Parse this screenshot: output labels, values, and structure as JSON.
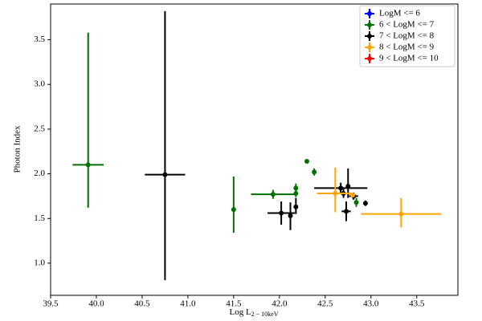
{
  "chart_data": {
    "type": "errorbar_scatter",
    "xlabel": "Log L",
    "xlabel_sub": "2 − 10keV",
    "ylabel": "Photon Index",
    "xlim": [
      39.5,
      43.95
    ],
    "ylim": [
      0.64,
      3.9
    ],
    "xticks": [
      39.5,
      {
        "value": 40.0,
        "label": "40.0"
      },
      40.5,
      {
        "value": 41.0,
        "label": "41.0"
      },
      41.5,
      {
        "value": 42.0,
        "label": "42.0"
      },
      42.5,
      {
        "value": 43.0,
        "label": "43.0"
      },
      43.5
    ],
    "yticks": [
      {
        "value": 1.0,
        "label": "1.0"
      },
      1.5,
      {
        "value": 2.0,
        "label": "2.0"
      },
      2.5,
      {
        "value": 3.0,
        "label": "3.0"
      },
      3.5
    ],
    "legend": "upper right",
    "series": [
      {
        "name": "LogM <= 6",
        "color": "#0000ff",
        "x": [],
        "y": [],
        "xerr": [],
        "yerr_low": [],
        "yerr_high": []
      },
      {
        "name": "6 < LogM <= 7",
        "color": "#007000",
        "x": [
          39.91,
          41.5,
          41.93,
          42.18,
          42.18,
          42.3,
          42.38,
          42.84
        ],
        "y": [
          2.1,
          1.6,
          1.77,
          1.84,
          1.78,
          2.14,
          2.02,
          1.68
        ],
        "xerr": [
          0.17,
          null,
          0.24,
          null,
          null,
          null,
          null,
          null
        ],
        "yerr_low": [
          0.48,
          0.26,
          0.05,
          0.05,
          0.04,
          null,
          0.04,
          0.05
        ],
        "yerr_high": [
          1.48,
          0.37,
          0.05,
          0.05,
          0.04,
          null,
          0.04,
          0.05
        ]
      },
      {
        "name": "7 < LogM <= 8",
        "color": "#000000",
        "x": [
          40.75,
          42.02,
          42.12,
          42.18,
          42.67,
          42.7,
          42.75,
          42.73,
          42.81,
          42.94
        ],
        "y": [
          1.99,
          1.56,
          1.53,
          1.63,
          1.84,
          1.78,
          1.86,
          1.58,
          1.75,
          1.67
        ],
        "xerr": [
          0.22,
          0.15,
          null,
          null,
          0.29,
          null,
          null,
          0.05,
          0.05,
          null
        ],
        "yerr_low": [
          1.18,
          0.13,
          0.16,
          0.08,
          0.06,
          0.05,
          0.13,
          0.11,
          0.04,
          0.03
        ],
        "yerr_high": [
          1.83,
          0.13,
          0.15,
          0.1,
          0.06,
          0.05,
          0.2,
          0.11,
          0.04,
          0.03
        ]
      },
      {
        "name": "8 < LogM <= 9",
        "color": "#ffa500",
        "x": [
          42.61,
          42.8,
          43.33
        ],
        "y": [
          1.78,
          1.76,
          1.55
        ],
        "xerr": [
          0.2,
          null,
          0.44
        ],
        "yerr_low": [
          0.21,
          null,
          0.15
        ],
        "yerr_high": [
          0.29,
          null,
          0.18
        ]
      },
      {
        "name": "9 < LogM <= 10",
        "color": "#ff0000",
        "x": [],
        "y": [],
        "xerr": [],
        "yerr_low": [],
        "yerr_high": []
      }
    ]
  }
}
